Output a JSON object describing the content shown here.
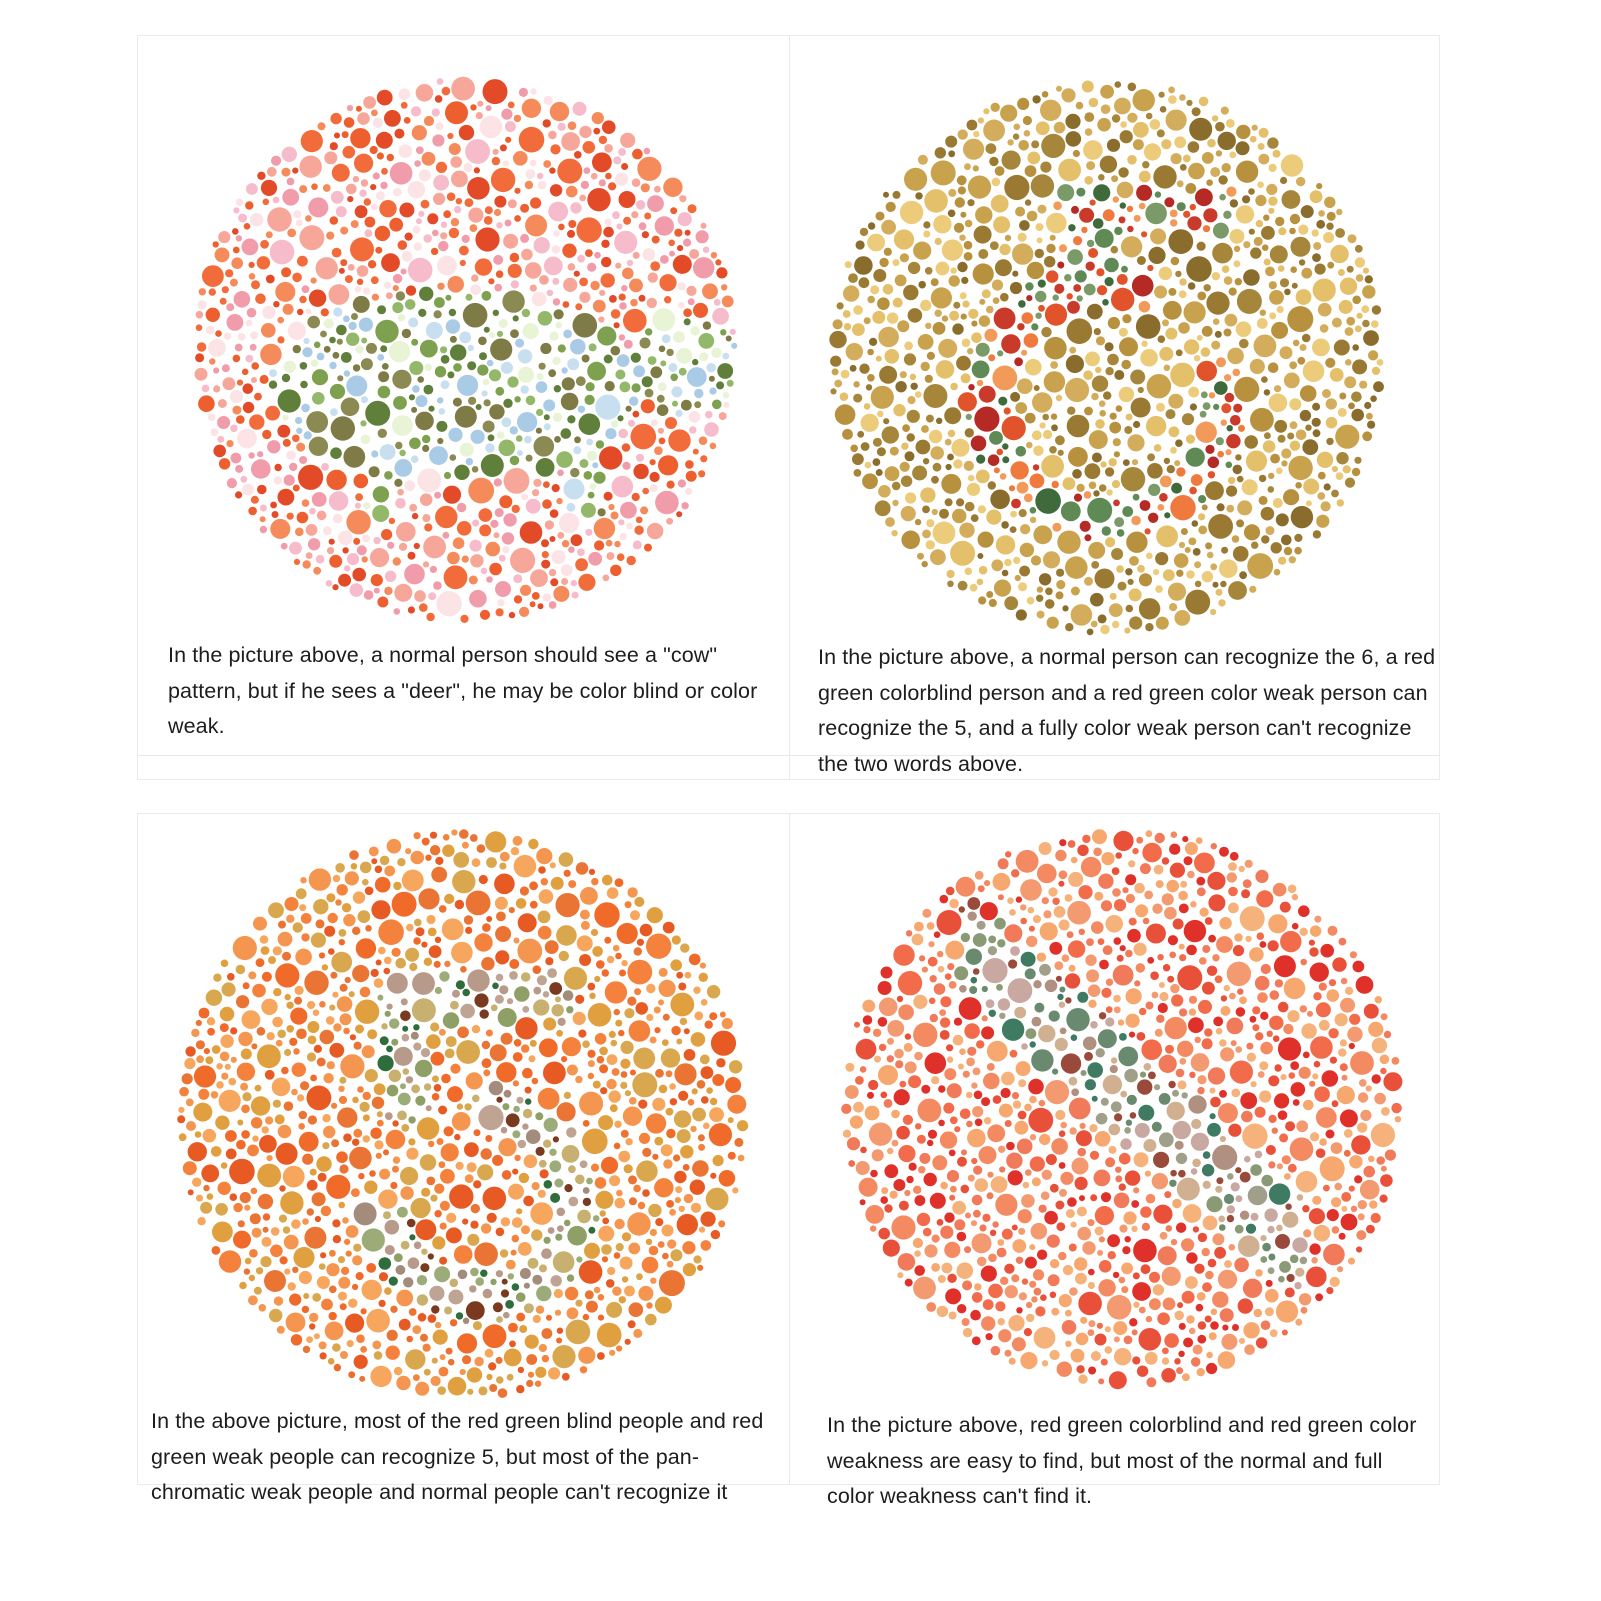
{
  "plates": [
    {
      "id": "cow-deer",
      "caption": "In the picture above, a normal person should see a \"cow\" pattern, but if he sees a \"deer\", he may be color blind or color weak.",
      "palette": {
        "background": [
          "#f26b3a",
          "#ee5f2f",
          "#f58a5a",
          "#f7a79a",
          "#f6bccb",
          "#f19cab",
          "#fbe3e6",
          "#e24a28"
        ],
        "figure": [
          "#7ea14f",
          "#5f7f3a",
          "#93b86a",
          "#8a8a52",
          "#a9cbe6",
          "#c8dff0",
          "#e9f3d6",
          "#7f7b46"
        ]
      }
    },
    {
      "id": "six-five",
      "caption": "In the picture above, a normal person can recognize the 6, a red green colorblind person and a red green color weak person can recognize the 5, and a fully color weak person can't recognize the two words above.",
      "palette": {
        "background": [
          "#b8913f",
          "#9a7a33",
          "#d4ad5c",
          "#e4c06b",
          "#8a6d2c",
          "#c9a24e",
          "#eccb7a",
          "#a6863a"
        ],
        "figure": [
          "#e0532b",
          "#c93a2a",
          "#f07a3e",
          "#b52a25",
          "#3f6b3c",
          "#5f8a55",
          "#f29a5a",
          "#7a9a68"
        ]
      }
    },
    {
      "id": "five-panchromatic",
      "caption": "In the above picture, most of the red green blind people and red green weak people can recognize 5, but most of the pan-chromatic weak people and normal people can't recognize it",
      "palette": {
        "background": [
          "#f06a2a",
          "#f4823c",
          "#e85a24",
          "#f59650",
          "#e0a040",
          "#d9a84e",
          "#f7a65e",
          "#ea7434"
        ],
        "figure": [
          "#2f6e3c",
          "#8fa066",
          "#bfa393",
          "#a48c7c",
          "#c8b070",
          "#7a3a20",
          "#9cac78",
          "#b89a8a"
        ]
      }
    },
    {
      "id": "hidden-figure",
      "caption": "In the picture above, red green colorblind and red green color weakness are easy to find, but most of the normal and full color weakness can't find it.",
      "palette": {
        "background": [
          "#f07a5a",
          "#f48a62",
          "#f39a70",
          "#e8503a",
          "#f6a86e",
          "#f26b4a",
          "#f5b27a",
          "#e0302a"
        ],
        "figure": [
          "#3f7a62",
          "#8a9a74",
          "#c8a8a0",
          "#b09080",
          "#9a4a3a",
          "#6a8a70",
          "#d0b090",
          "#a0a08a"
        ]
      }
    }
  ]
}
